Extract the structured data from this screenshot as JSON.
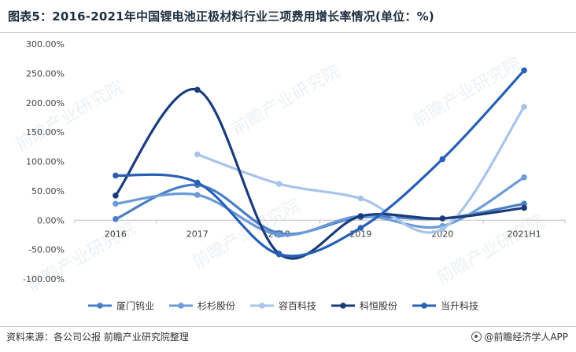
{
  "title": "图表5：2016-2021年中国锂电池正极材料行业三项费用增长率情况(单位：%)",
  "source": "资料来源：各公司公报 前瞻产业研究院整理",
  "brand": "@前瞻经济学人APP",
  "watermark": "前瞻产业研究院",
  "chart_data": {
    "type": "line",
    "smooth": true,
    "categories": [
      "2016",
      "2017",
      "2018",
      "2019",
      "2020",
      "2021H1"
    ],
    "y_tick_labels": [
      "-100.00%",
      "-50.00%",
      "0.00%",
      "50.00%",
      "100.00%",
      "150.00%",
      "200.00%",
      "250.00%",
      "300.00%"
    ],
    "ylim": [
      -100,
      300
    ],
    "y_step": 50,
    "grid": false,
    "legend_position": "bottom",
    "series": [
      {
        "name": "厦门钨业",
        "color": "#4a7fc4",
        "values": [
          2,
          60,
          -22,
          5,
          3,
          28
        ]
      },
      {
        "name": "杉杉股份",
        "color": "#6d9bd8",
        "values": [
          28,
          43,
          -25,
          7,
          -10,
          73
        ]
      },
      {
        "name": "容百科技",
        "color": "#a8c4ea",
        "values": [
          null,
          112,
          62,
          37,
          -15,
          193
        ]
      },
      {
        "name": "科恒股份",
        "color": "#1b3c7a",
        "values": [
          42,
          222,
          -57,
          7,
          3,
          21
        ]
      },
      {
        "name": "当升科技",
        "color": "#2760b4",
        "values": [
          76,
          64,
          -58,
          -13,
          104,
          255
        ]
      }
    ]
  }
}
